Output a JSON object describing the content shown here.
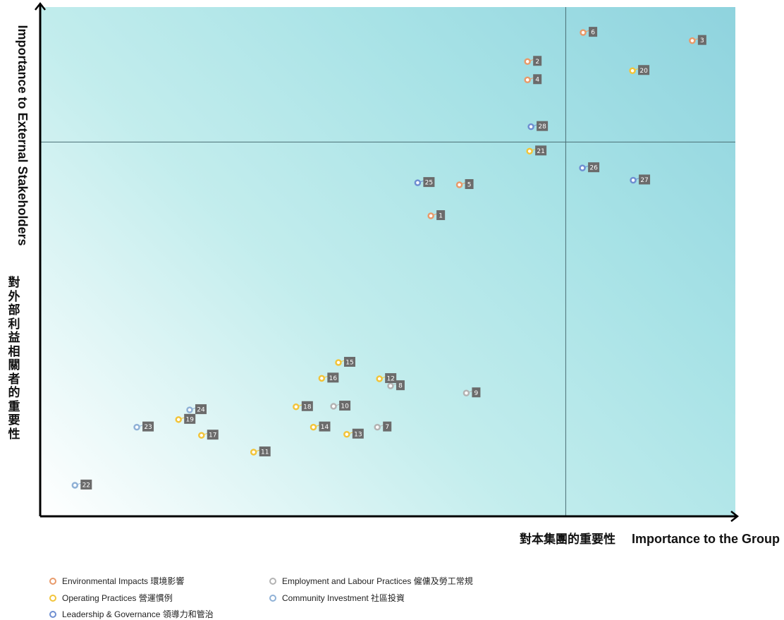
{
  "colors": {
    "environmental": "#e89a6a",
    "operating": "#f2c43a",
    "employment": "#b3b3b3",
    "community": "#8fb1d6",
    "leadership": "#6f8fd1",
    "label_bg": "#6b6b6b"
  },
  "chart_data": {
    "type": "scatter",
    "title": "",
    "xlabel_zh": "對本集團的重要性",
    "xlabel": "Importance to the Group",
    "ylabel": "Importance to External Stakeholders",
    "ylabel_zh": "對外部利益相關者的重要性",
    "xlim": [
      0,
      100
    ],
    "ylim": [
      0,
      100
    ],
    "quadrant_lines": {
      "x": 75.6,
      "y": 73.5
    },
    "grid": false,
    "legend_position": "bottom-left",
    "legend": [
      {
        "key": "environmental",
        "label": "Environmental Impacts 環境影響"
      },
      {
        "key": "operating",
        "label": "Operating Practices 營運慣例"
      },
      {
        "key": "leadership",
        "label": "Leadership & Governance 領導力和管治"
      },
      {
        "key": "employment",
        "label": "Employment and Labour Practices 僱傭及勞工常規"
      },
      {
        "key": "community",
        "label": "Community Investment 社區投資"
      }
    ],
    "points": [
      {
        "id": "1",
        "category": "environmental",
        "x": 56.2,
        "y": 59.0
      },
      {
        "id": "2",
        "category": "environmental",
        "x": 70.1,
        "y": 89.3
      },
      {
        "id": "3",
        "category": "environmental",
        "x": 93.8,
        "y": 93.4
      },
      {
        "id": "4",
        "category": "environmental",
        "x": 70.1,
        "y": 85.7
      },
      {
        "id": "5",
        "category": "environmental",
        "x": 60.3,
        "y": 65.1
      },
      {
        "id": "6",
        "category": "environmental",
        "x": 78.1,
        "y": 95.0
      },
      {
        "id": "7",
        "category": "employment",
        "x": 48.5,
        "y": 17.5
      },
      {
        "id": "8",
        "category": "employment",
        "x": 50.4,
        "y": 25.6
      },
      {
        "id": "9",
        "category": "employment",
        "x": 61.3,
        "y": 24.2
      },
      {
        "id": "10",
        "category": "employment",
        "x": 42.2,
        "y": 21.6
      },
      {
        "id": "11",
        "category": "operating",
        "x": 30.7,
        "y": 12.6
      },
      {
        "id": "12",
        "category": "operating",
        "x": 48.8,
        "y": 27.0
      },
      {
        "id": "13",
        "category": "operating",
        "x": 44.1,
        "y": 16.1
      },
      {
        "id": "14",
        "category": "operating",
        "x": 39.3,
        "y": 17.5
      },
      {
        "id": "15",
        "category": "operating",
        "x": 42.9,
        "y": 30.2
      },
      {
        "id": "16",
        "category": "operating",
        "x": 40.5,
        "y": 27.1
      },
      {
        "id": "17",
        "category": "operating",
        "x": 23.2,
        "y": 15.9
      },
      {
        "id": "18",
        "category": "operating",
        "x": 36.8,
        "y": 21.5
      },
      {
        "id": "19",
        "category": "operating",
        "x": 19.9,
        "y": 19.0
      },
      {
        "id": "20",
        "category": "operating",
        "x": 85.2,
        "y": 87.5
      },
      {
        "id": "21",
        "category": "operating",
        "x": 70.4,
        "y": 71.7
      },
      {
        "id": "22",
        "category": "community",
        "x": 5.0,
        "y": 6.1
      },
      {
        "id": "23",
        "category": "community",
        "x": 13.9,
        "y": 17.5
      },
      {
        "id": "24",
        "category": "community",
        "x": 21.5,
        "y": 20.9
      },
      {
        "id": "25",
        "category": "leadership",
        "x": 54.3,
        "y": 65.5
      },
      {
        "id": "26",
        "category": "leadership",
        "x": 78.0,
        "y": 68.4
      },
      {
        "id": "27",
        "category": "leadership",
        "x": 85.3,
        "y": 66.0
      },
      {
        "id": "28",
        "category": "leadership",
        "x": 70.6,
        "y": 76.5
      }
    ]
  }
}
